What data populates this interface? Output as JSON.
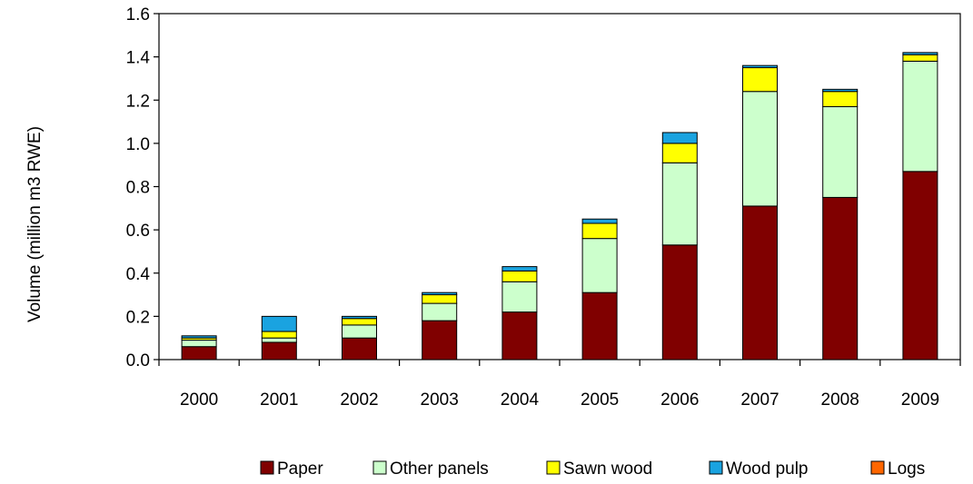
{
  "chart_data": {
    "type": "bar",
    "stacked": true,
    "title": "",
    "xlabel": "",
    "ylabel": "Volume (million m3  RWE)",
    "ylim": [
      0,
      1.6
    ],
    "yticks": [
      "0.0",
      "0.2",
      "0.4",
      "0.6",
      "0.8",
      "1.0",
      "1.2",
      "1.4",
      "1.6"
    ],
    "grid": "none",
    "legend_position": "bottom",
    "categories": [
      "2000",
      "2001",
      "2002",
      "2003",
      "2004",
      "2005",
      "2006",
      "2007",
      "2008",
      "2009"
    ],
    "series": [
      {
        "name": "Paper",
        "color": "#800000",
        "values": [
          0.06,
          0.08,
          0.1,
          0.18,
          0.22,
          0.31,
          0.53,
          0.71,
          0.75,
          0.87
        ]
      },
      {
        "name": "Other panels",
        "color": "#ccffcc",
        "values": [
          0.03,
          0.02,
          0.06,
          0.08,
          0.14,
          0.25,
          0.38,
          0.53,
          0.42,
          0.51
        ]
      },
      {
        "name": "Sawn wood",
        "color": "#ffff00",
        "values": [
          0.01,
          0.03,
          0.03,
          0.04,
          0.05,
          0.07,
          0.09,
          0.11,
          0.07,
          0.03
        ]
      },
      {
        "name": "Wood pulp",
        "color": "#1aa3e0",
        "values": [
          0.01,
          0.07,
          0.01,
          0.01,
          0.02,
          0.02,
          0.05,
          0.01,
          0.01,
          0.01
        ]
      },
      {
        "name": "Logs",
        "color": "#ff6600",
        "values": [
          0,
          0,
          0,
          0,
          0,
          0,
          0,
          0,
          0,
          0
        ]
      }
    ]
  }
}
